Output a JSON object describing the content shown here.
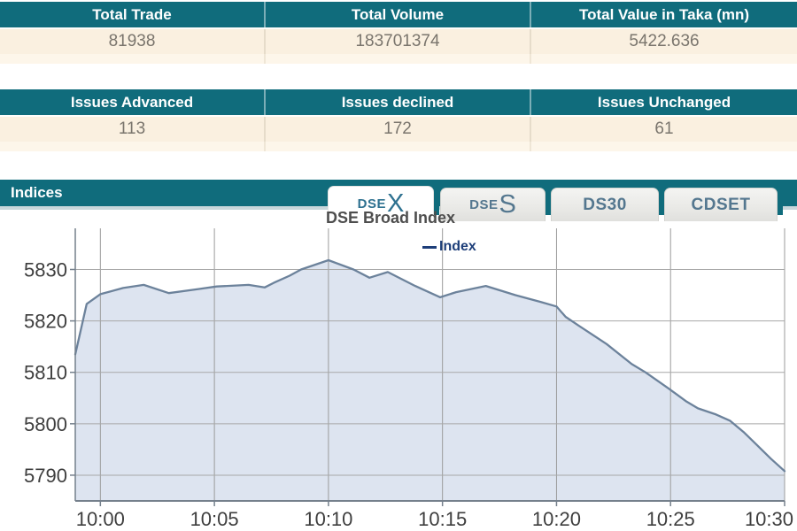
{
  "summary_tables": {
    "first": {
      "headers": [
        "Total Trade",
        "Total Volume",
        "Total Value in Taka (mn)"
      ],
      "values": [
        "81938",
        "183701374",
        "5422.636"
      ]
    },
    "second": {
      "headers": [
        "Issues Advanced",
        "Issues declined",
        "Issues Unchanged"
      ],
      "values": [
        "113",
        "172",
        "61"
      ]
    }
  },
  "indices": {
    "section_title": "Indices",
    "tabs": {
      "dsex": {
        "prefix": "DSE",
        "suffix": "X",
        "active": true
      },
      "dses": {
        "prefix": "DSE",
        "suffix": "S",
        "active": false
      },
      "ds30": {
        "label": "DS30",
        "active": false
      },
      "cdset": {
        "label": "CDSET",
        "active": false
      }
    }
  },
  "chart_data": {
    "type": "area",
    "title": "DSE Broad Index",
    "legend_label": "Index",
    "legend_color": "#1d3e79",
    "x_ticks": [
      "10:00",
      "10:05",
      "10:10",
      "10:15",
      "10:20",
      "10:25",
      "10:30"
    ],
    "x_tick_minutes": [
      0,
      5,
      10,
      15,
      20,
      25,
      30
    ],
    "y_ticks": [
      5830,
      5820,
      5810,
      5800,
      5790
    ],
    "xlim": [
      -1.1,
      30
    ],
    "ylim": [
      5785,
      5838
    ],
    "grid": true,
    "series": [
      {
        "name": "Index",
        "points": [
          [
            -1.1,
            5813.5
          ],
          [
            -0.6,
            5823.3
          ],
          [
            0.0,
            5825.2
          ],
          [
            1.0,
            5826.4
          ],
          [
            1.9,
            5827.0
          ],
          [
            3.0,
            5825.4
          ],
          [
            4.3,
            5826.2
          ],
          [
            5.1,
            5826.7
          ],
          [
            6.5,
            5827.0
          ],
          [
            7.2,
            5826.5
          ],
          [
            7.6,
            5827.4
          ],
          [
            8.3,
            5828.8
          ],
          [
            8.8,
            5830.0
          ],
          [
            10.0,
            5831.8
          ],
          [
            11.1,
            5830.0
          ],
          [
            11.8,
            5828.4
          ],
          [
            12.6,
            5829.5
          ],
          [
            13.8,
            5826.8
          ],
          [
            14.9,
            5824.6
          ],
          [
            15.6,
            5825.6
          ],
          [
            16.9,
            5826.8
          ],
          [
            18.2,
            5825.0
          ],
          [
            19.3,
            5823.7
          ],
          [
            20.0,
            5822.8
          ],
          [
            20.4,
            5820.8
          ],
          [
            21.0,
            5819.0
          ],
          [
            22.2,
            5815.5
          ],
          [
            23.3,
            5811.6
          ],
          [
            23.9,
            5810.0
          ],
          [
            24.9,
            5806.9
          ],
          [
            25.7,
            5804.3
          ],
          [
            26.2,
            5803.0
          ],
          [
            27.0,
            5801.8
          ],
          [
            27.6,
            5800.6
          ],
          [
            28.2,
            5798.4
          ],
          [
            28.8,
            5795.8
          ],
          [
            29.4,
            5793.2
          ],
          [
            30.0,
            5790.8
          ]
        ]
      }
    ],
    "colors": {
      "fill": "rgba(219,227,239,0.95)",
      "line": "#6c829b",
      "grid_v": "#9b9b9b",
      "grid_h": "#a8a8a8",
      "axis": "#75808c"
    }
  }
}
